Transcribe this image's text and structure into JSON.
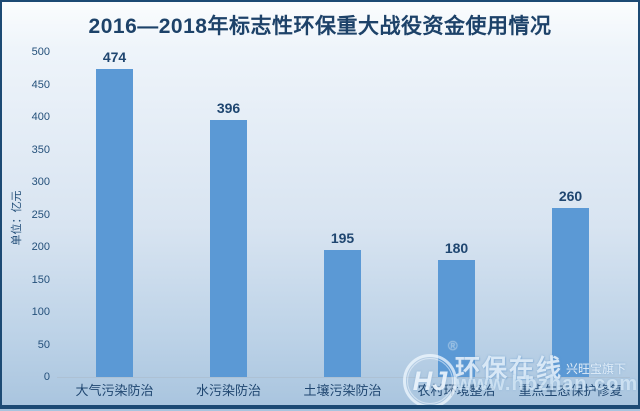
{
  "title": "2016—2018年标志性环保重大战役资金使用情况",
  "chart_data": {
    "type": "bar",
    "title": "2016—2018年标志性环保重大战役资金使用情况",
    "categories": [
      "大气污染防治",
      "水污染防治",
      "土壤污染防治",
      "农村环境整治",
      "重点生态保护修复"
    ],
    "values": [
      474,
      396,
      195,
      180,
      260
    ],
    "xlabel": "",
    "ylabel": "单位：亿元",
    "ylim": [
      0,
      500
    ],
    "yticks": [
      500,
      450,
      400,
      350,
      300,
      250,
      200,
      150,
      100,
      50,
      0
    ],
    "grid": false,
    "legend": "none",
    "bar_color": "#5b99d5",
    "label_color": "#1f4670",
    "border_color": "#1c4a74"
  },
  "watermark": {
    "logo_monogram": "HJ",
    "registered_mark": "®",
    "brand": "环保在线",
    "affiliate": "兴旺宝旗下",
    "url": "www.hbzhan.com"
  }
}
